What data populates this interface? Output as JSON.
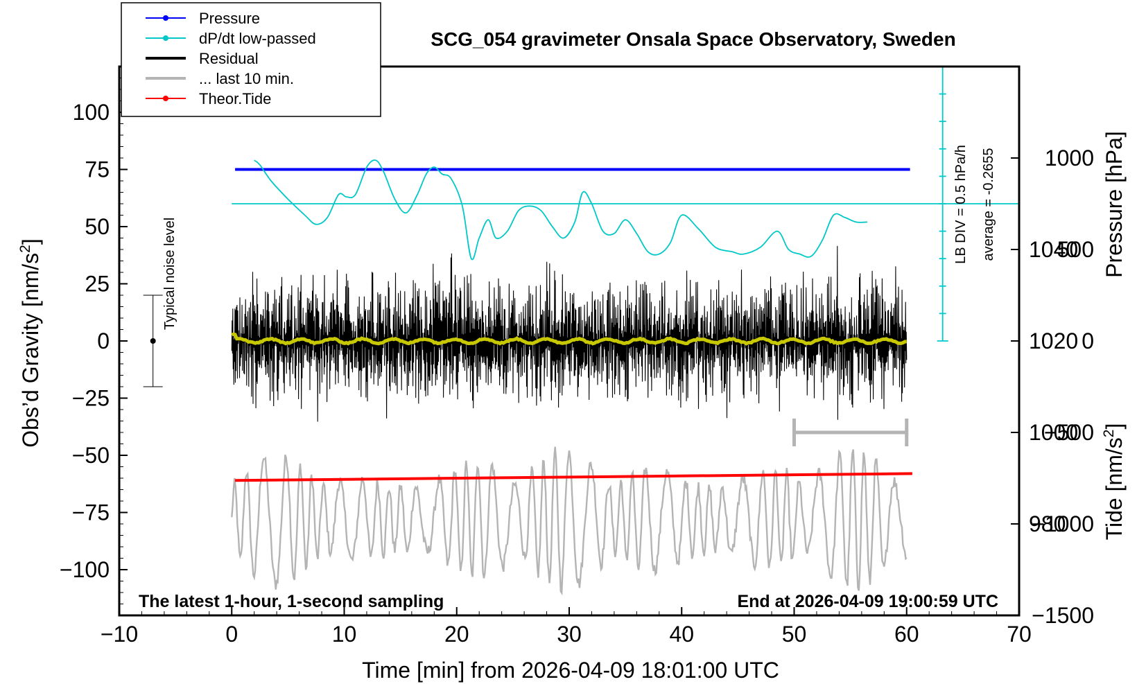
{
  "chart_data": {
    "type": "line",
    "title": "SCG_054 gravimeter Onsala Space Observatory, Sweden",
    "footer_left": "The latest 1-hour, 1-second sampling",
    "footer_right": "End at 2026-04-09 19:00:59 UTC",
    "xlabel": "Time [min] from 2026-04-09 18:01:00 UTC",
    "xlim": [
      -10,
      70
    ],
    "x_ticks": [
      "−10",
      "0",
      "10",
      "20",
      "30",
      "40",
      "50",
      "60",
      "70"
    ],
    "y_left": {
      "label_text": "Obs’d Gravity [nm/s",
      "label_sup": "2",
      "label_end": "]",
      "lim": [
        -120,
        120
      ],
      "ticks": [
        {
          "v": 100,
          "t": "100"
        },
        {
          "v": 75,
          "t": "75"
        },
        {
          "v": 50,
          "t": "50"
        },
        {
          "v": 25,
          "t": "25"
        },
        {
          "v": 0,
          "t": "0"
        },
        {
          "v": -25,
          "t": "−25"
        },
        {
          "v": -50,
          "t": "−50"
        },
        {
          "v": -75,
          "t": "−75"
        },
        {
          "v": -100,
          "t": "−100"
        }
      ]
    },
    "y_pressure": {
      "label": "Pressure [hPa]",
      "lim": [
        960,
        1080
      ],
      "ticks": [
        {
          "v": 1040,
          "t": "1040"
        },
        {
          "v": 1020,
          "t": "1020"
        },
        {
          "v": 1000,
          "t": "1000"
        },
        {
          "v": 980,
          "t": "980"
        }
      ]
    },
    "y_tide": {
      "label_text": "Tide [nm/s",
      "label_sup": "2",
      "label_end": "]",
      "lim": [
        -1500,
        1500
      ],
      "ticks": [
        {
          "v": 1000,
          "t": "1000"
        },
        {
          "v": 500,
          "t": "500"
        },
        {
          "v": 0,
          "t": "0"
        },
        {
          "v": -500,
          "t": "−500"
        },
        {
          "v": -1000,
          "t": "−1000"
        },
        {
          "v": -1500,
          "t": "−1500"
        }
      ]
    },
    "dpdt_scale": {
      "line1": "LB DIV = 0.5 hPa/h",
      "line2": "average = -0.2655",
      "reference_gravity": 60
    },
    "noise_annotation": {
      "label": "Typical noise level",
      "x": -7,
      "center": 0,
      "half_range": 20
    },
    "last10_marker": {
      "x_start": 50,
      "x_end": 60,
      "y": -40
    },
    "legend": [
      {
        "label": "Pressure",
        "color": "#0000ff",
        "marker": true
      },
      {
        "label": "dP/dt low-passed",
        "color": "#00c8c8",
        "marker": true
      },
      {
        "label": "Residual",
        "color": "#000000",
        "marker": false
      },
      {
        "label": "... last 10 min.",
        "color": "#b4b4b4",
        "marker": false
      },
      {
        "label": "Theor.Tide",
        "color": "#ff0000",
        "marker": true
      }
    ],
    "series": [
      {
        "name": "Pressure",
        "color": "#0000ff",
        "x": [
          0.3,
          60.3
        ],
        "y": [
          75,
          75
        ]
      },
      {
        "name": "dP/dt low-passed",
        "color": "#00c8c8",
        "x": [
          2.0,
          2.5,
          3.5,
          5.0,
          6.5,
          7.5,
          8.5,
          9.5,
          10.2,
          11.0,
          12.0,
          12.8,
          13.5,
          14.5,
          15.5,
          16.5,
          17.3,
          18.0,
          18.7,
          19.5,
          20.5,
          21.3,
          22.0,
          22.8,
          23.5,
          24.5,
          25.5,
          26.5,
          27.5,
          28.5,
          29.5,
          30.5,
          31.2,
          32.0,
          33.0,
          34.0,
          35.0,
          36.0,
          37.0,
          38.0,
          39.0,
          40.0,
          41.5,
          43.0,
          44.5,
          45.5,
          47.0,
          48.5,
          49.5,
          50.5,
          51.5,
          52.5,
          53.5,
          54.5,
          55.5,
          56.5
        ],
        "y": [
          79,
          77,
          70,
          62,
          55,
          51,
          54,
          64,
          63,
          64,
          76,
          79,
          74,
          62,
          56,
          64,
          73,
          76,
          73,
          71,
          59,
          36,
          45,
          53,
          45,
          48,
          57,
          59,
          57,
          50,
          45,
          52,
          65,
          60,
          48,
          47,
          53,
          47,
          39,
          38,
          43,
          55,
          49,
          41,
          39,
          38,
          41,
          48,
          40,
          38,
          37,
          44,
          55,
          54,
          52,
          52
        ]
      },
      {
        "name": "Residual",
        "color": "#000000",
        "x_range": [
          0,
          60
        ],
        "y_range": [
          -40,
          40
        ]
      },
      {
        "name": "Residual smoothed",
        "color": "#c8c800",
        "x_range": [
          0,
          60
        ],
        "y": 0
      },
      {
        "name": "... last 10 min.",
        "color": "#b4b4b4",
        "x_range": [
          0,
          60
        ],
        "y_range": [
          -120,
          -35
        ]
      },
      {
        "name": "Theor.Tide",
        "color": "#ff0000",
        "x": [
          0.3,
          60.5
        ],
        "y": [
          -61,
          -58
        ]
      }
    ]
  }
}
